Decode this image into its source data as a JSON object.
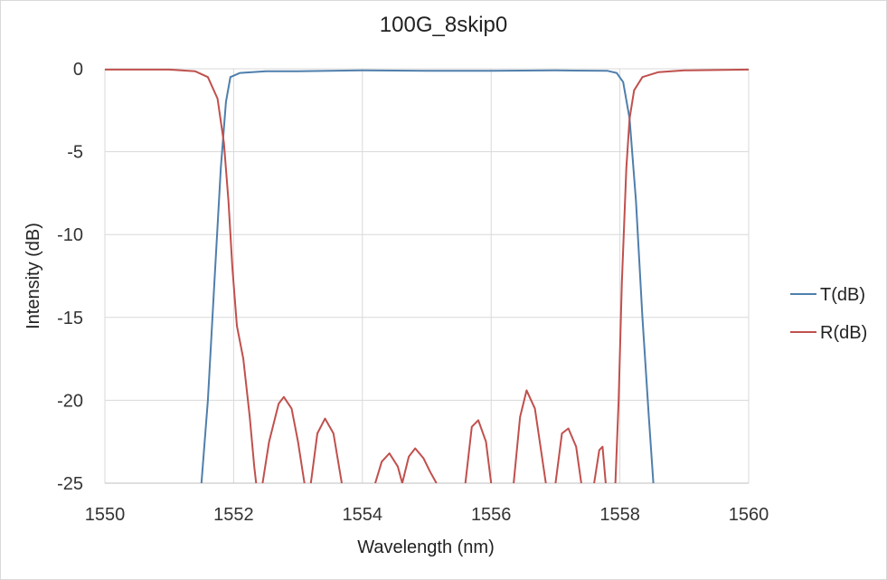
{
  "chart_data": {
    "type": "line",
    "title": "100G_8skip0",
    "xlabel": "Wavelength (nm)",
    "ylabel": "Intensity (dB)",
    "xlim": [
      1550,
      1560
    ],
    "ylim": [
      -25,
      0
    ],
    "x_ticks": [
      "1550",
      "1552",
      "1554",
      "1556",
      "1558",
      "1560"
    ],
    "y_ticks": [
      "0",
      "-5",
      "-10",
      "-15",
      "-20",
      "-25"
    ],
    "grid": true,
    "legend_position": "right",
    "series": [
      {
        "name": "T(dB)",
        "color": "#4f7fac",
        "points": [
          [
            1551.5,
            -25
          ],
          [
            1551.6,
            -20
          ],
          [
            1551.7,
            -13
          ],
          [
            1551.8,
            -6
          ],
          [
            1551.88,
            -2
          ],
          [
            1551.95,
            -0.5
          ],
          [
            1552.1,
            -0.25
          ],
          [
            1552.5,
            -0.15
          ],
          [
            1553.0,
            -0.15
          ],
          [
            1554.0,
            -0.1
          ],
          [
            1555.0,
            -0.12
          ],
          [
            1556.0,
            -0.12
          ],
          [
            1557.0,
            -0.1
          ],
          [
            1557.8,
            -0.12
          ],
          [
            1557.95,
            -0.25
          ],
          [
            1558.05,
            -0.8
          ],
          [
            1558.15,
            -3
          ],
          [
            1558.25,
            -8
          ],
          [
            1558.35,
            -15
          ],
          [
            1558.45,
            -21
          ],
          [
            1558.52,
            -25
          ]
        ]
      },
      {
        "name": "R(dB)",
        "color": "#c0504d",
        "points": [
          [
            1550.0,
            -0.05
          ],
          [
            1551.0,
            -0.05
          ],
          [
            1551.4,
            -0.15
          ],
          [
            1551.6,
            -0.5
          ],
          [
            1551.75,
            -1.8
          ],
          [
            1551.85,
            -4.5
          ],
          [
            1551.92,
            -8
          ],
          [
            1551.98,
            -12
          ],
          [
            1552.05,
            -15.5
          ],
          [
            1552.15,
            -17.5
          ],
          [
            1552.25,
            -21
          ],
          [
            1552.32,
            -24
          ],
          [
            1552.35,
            -25
          ],
          null,
          [
            1552.45,
            -25
          ],
          [
            1552.55,
            -22.5
          ],
          [
            1552.7,
            -20.2
          ],
          [
            1552.78,
            -19.8
          ],
          [
            1552.9,
            -20.5
          ],
          [
            1553.0,
            -22.5
          ],
          [
            1553.1,
            -25
          ],
          null,
          [
            1553.2,
            -25
          ],
          [
            1553.3,
            -22
          ],
          [
            1553.42,
            -21.1
          ],
          [
            1553.55,
            -22
          ],
          [
            1553.68,
            -25
          ],
          null,
          [
            1554.2,
            -25
          ],
          [
            1554.3,
            -23.7
          ],
          [
            1554.42,
            -23.2
          ],
          [
            1554.55,
            -24
          ],
          [
            1554.62,
            -25
          ],
          null,
          [
            1554.62,
            -25
          ],
          [
            1554.72,
            -23.4
          ],
          [
            1554.82,
            -22.9
          ],
          [
            1554.95,
            -23.5
          ],
          [
            1555.05,
            -24.3
          ],
          [
            1555.15,
            -25
          ],
          null,
          [
            1555.6,
            -25
          ],
          [
            1555.7,
            -21.6
          ],
          [
            1555.8,
            -21.2
          ],
          [
            1555.92,
            -22.5
          ],
          [
            1556.0,
            -25
          ],
          null,
          [
            1556.35,
            -25
          ],
          [
            1556.45,
            -21
          ],
          [
            1556.55,
            -19.4
          ],
          [
            1556.68,
            -20.5
          ],
          [
            1556.85,
            -25
          ],
          null,
          [
            1557.0,
            -25
          ],
          [
            1557.1,
            -22
          ],
          [
            1557.2,
            -21.7
          ],
          [
            1557.32,
            -22.8
          ],
          [
            1557.4,
            -25
          ],
          null,
          [
            1557.6,
            -25
          ],
          [
            1557.68,
            -23
          ],
          [
            1557.73,
            -22.8
          ],
          [
            1557.78,
            -25
          ],
          null,
          [
            1557.93,
            -25
          ],
          [
            1557.98,
            -20
          ],
          [
            1558.03,
            -13
          ],
          [
            1558.1,
            -6
          ],
          [
            1558.15,
            -3
          ],
          [
            1558.22,
            -1.3
          ],
          [
            1558.35,
            -0.5
          ],
          [
            1558.6,
            -0.2
          ],
          [
            1559.0,
            -0.1
          ],
          [
            1560.0,
            -0.05
          ]
        ]
      }
    ]
  }
}
